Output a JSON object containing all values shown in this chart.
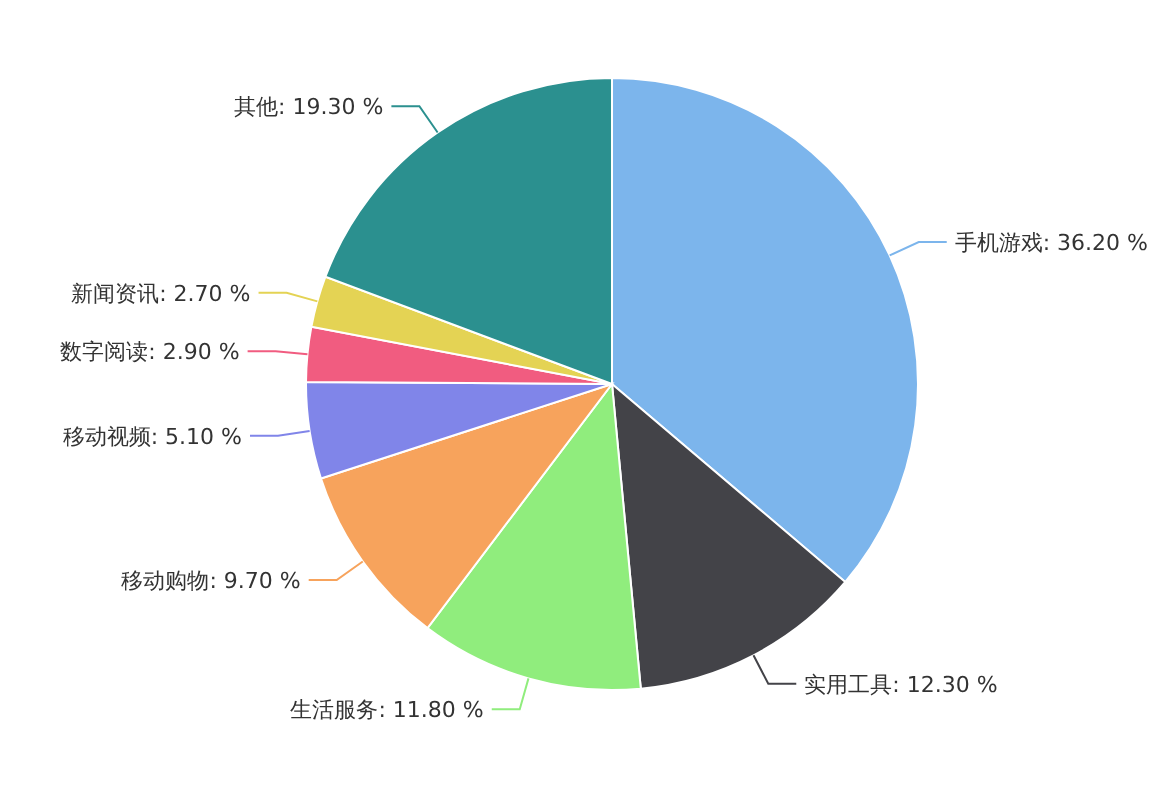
{
  "chart_data": {
    "type": "pie",
    "categories": [
      "手机游戏",
      "实用工具",
      "生活服务",
      "移动购物",
      "移动视频",
      "数字阅读",
      "新闻资讯",
      "其他"
    ],
    "values": [
      36.2,
      12.3,
      11.8,
      9.7,
      5.1,
      2.9,
      2.7,
      19.3
    ],
    "value_labels": [
      "36.20 %",
      "12.30 %",
      "11.80 %",
      "9.70 %",
      "5.10 %",
      "2.90 %",
      "2.70 %",
      "19.30 %"
    ],
    "colors": [
      "#7cb5ec",
      "#434348",
      "#90ed7d",
      "#f7a35c",
      "#8085e9",
      "#f15c80",
      "#e4d354",
      "#2b908f"
    ],
    "legend": false
  }
}
